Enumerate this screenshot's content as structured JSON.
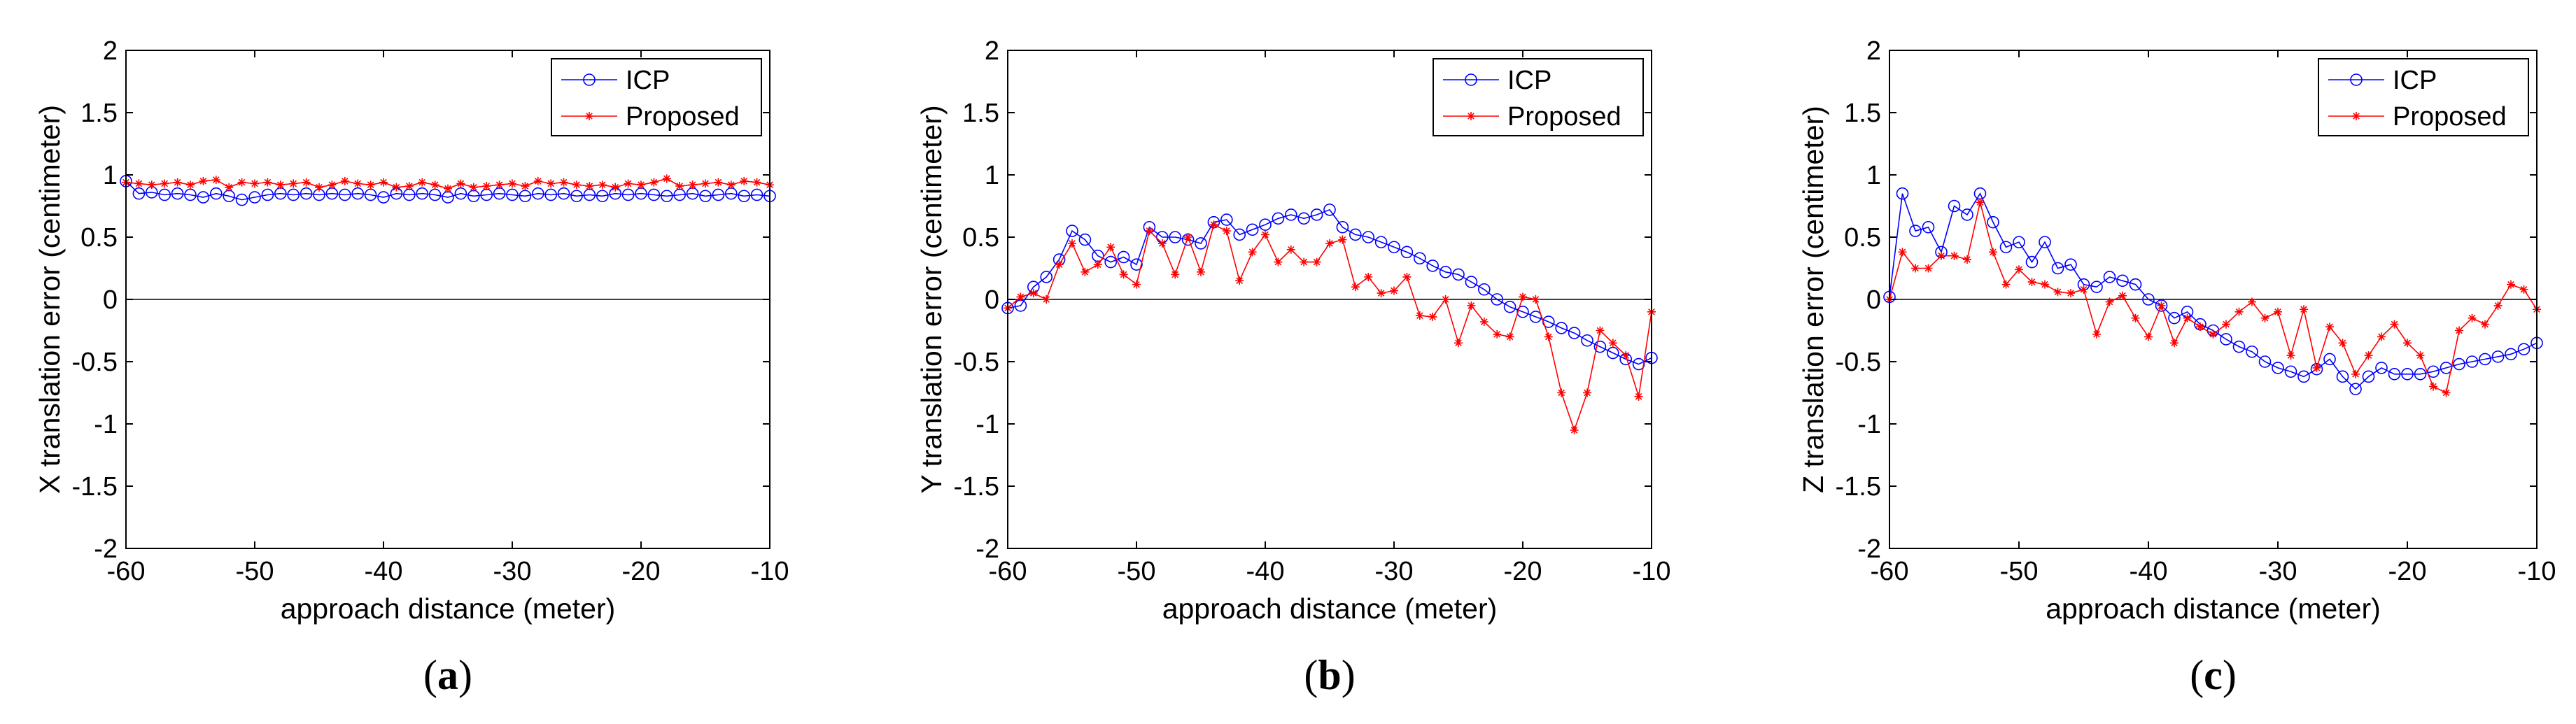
{
  "chart_data": [
    {
      "type": "line",
      "caption": {
        "open": "(",
        "letter": "a",
        "close": ")"
      },
      "xlabel": "approach distance (meter)",
      "ylabel": "X translation error (centimeter)",
      "xlim": [
        -60,
        -10
      ],
      "ylim": [
        -2,
        2
      ],
      "xticks": [
        "-60",
        "-50",
        "-40",
        "-30",
        "-20",
        "-10"
      ],
      "yticks": [
        "-2",
        "-1.5",
        "-1",
        "-0.5",
        "0",
        "0.5",
        "1",
        "1.5",
        "2"
      ],
      "legend_position": "top-right",
      "x": [
        -60,
        -59,
        -58,
        -57,
        -56,
        -55,
        -54,
        -53,
        -52,
        -51,
        -50,
        -49,
        -48,
        -47,
        -46,
        -45,
        -44,
        -43,
        -42,
        -41,
        -40,
        -39,
        -38,
        -37,
        -36,
        -35,
        -34,
        -33,
        -32,
        -31,
        -30,
        -29,
        -28,
        -27,
        -26,
        -25,
        -24,
        -23,
        -22,
        -21,
        -20,
        -19,
        -18,
        -17,
        -16,
        -15,
        -14,
        -13,
        -12,
        -11,
        -10
      ],
      "series": [
        {
          "name": "ICP",
          "color": "#0000ff",
          "marker": "circle",
          "values": [
            0.95,
            0.85,
            0.86,
            0.84,
            0.85,
            0.84,
            0.82,
            0.85,
            0.83,
            0.8,
            0.82,
            0.84,
            0.85,
            0.84,
            0.85,
            0.84,
            0.85,
            0.84,
            0.85,
            0.84,
            0.82,
            0.85,
            0.84,
            0.85,
            0.84,
            0.82,
            0.85,
            0.83,
            0.84,
            0.85,
            0.84,
            0.83,
            0.85,
            0.84,
            0.85,
            0.83,
            0.84,
            0.83,
            0.85,
            0.84,
            0.85,
            0.84,
            0.83,
            0.84,
            0.85,
            0.83,
            0.84,
            0.85,
            0.83,
            0.84,
            0.83
          ]
        },
        {
          "name": "Proposed",
          "color": "#ff0000",
          "marker": "star",
          "values": [
            0.94,
            0.93,
            0.92,
            0.93,
            0.94,
            0.92,
            0.95,
            0.96,
            0.9,
            0.94,
            0.93,
            0.94,
            0.92,
            0.93,
            0.94,
            0.9,
            0.92,
            0.95,
            0.93,
            0.92,
            0.94,
            0.9,
            0.91,
            0.94,
            0.92,
            0.89,
            0.93,
            0.9,
            0.91,
            0.92,
            0.93,
            0.91,
            0.95,
            0.93,
            0.94,
            0.92,
            0.91,
            0.92,
            0.9,
            0.93,
            0.92,
            0.94,
            0.97,
            0.91,
            0.92,
            0.93,
            0.94,
            0.92,
            0.95,
            0.94,
            0.92
          ]
        }
      ]
    },
    {
      "type": "line",
      "caption": {
        "open": "(",
        "letter": "b",
        "close": ")"
      },
      "xlabel": "approach distance (meter)",
      "ylabel": "Y translation error (centimeter)",
      "xlim": [
        -60,
        -10
      ],
      "ylim": [
        -2,
        2
      ],
      "xticks": [
        "-60",
        "-50",
        "-40",
        "-30",
        "-20",
        "-10"
      ],
      "yticks": [
        "-2",
        "-1.5",
        "-1",
        "-0.5",
        "0",
        "0.5",
        "1",
        "1.5",
        "2"
      ],
      "legend_position": "top-right",
      "x": [
        -60,
        -59,
        -58,
        -57,
        -56,
        -55,
        -54,
        -53,
        -52,
        -51,
        -50,
        -49,
        -48,
        -47,
        -46,
        -45,
        -44,
        -43,
        -42,
        -41,
        -40,
        -39,
        -38,
        -37,
        -36,
        -35,
        -34,
        -33,
        -32,
        -31,
        -30,
        -29,
        -28,
        -27,
        -26,
        -25,
        -24,
        -23,
        -22,
        -21,
        -20,
        -19,
        -18,
        -17,
        -16,
        -15,
        -14,
        -13,
        -12,
        -11,
        -10
      ],
      "series": [
        {
          "name": "ICP",
          "color": "#0000ff",
          "marker": "circle",
          "values": [
            -0.07,
            -0.05,
            0.1,
            0.18,
            0.32,
            0.55,
            0.48,
            0.35,
            0.3,
            0.34,
            0.28,
            0.58,
            0.5,
            0.5,
            0.48,
            0.45,
            0.62,
            0.64,
            0.52,
            0.56,
            0.6,
            0.65,
            0.68,
            0.65,
            0.68,
            0.72,
            0.58,
            0.52,
            0.5,
            0.46,
            0.42,
            0.38,
            0.33,
            0.27,
            0.22,
            0.2,
            0.14,
            0.08,
            0.0,
            -0.06,
            -0.1,
            -0.14,
            -0.18,
            -0.23,
            -0.27,
            -0.33,
            -0.38,
            -0.43,
            -0.48,
            -0.52,
            -0.47
          ]
        },
        {
          "name": "Proposed",
          "color": "#ff0000",
          "marker": "star",
          "values": [
            -0.07,
            0.02,
            0.05,
            0.0,
            0.28,
            0.45,
            0.22,
            0.28,
            0.42,
            0.2,
            0.12,
            0.55,
            0.45,
            0.2,
            0.5,
            0.22,
            0.6,
            0.55,
            0.15,
            0.38,
            0.52,
            0.3,
            0.4,
            0.3,
            0.3,
            0.45,
            0.48,
            0.1,
            0.18,
            0.05,
            0.07,
            0.18,
            -0.13,
            -0.14,
            0.0,
            -0.35,
            -0.05,
            -0.18,
            -0.28,
            -0.3,
            0.02,
            0.0,
            -0.3,
            -0.75,
            -1.05,
            -0.75,
            -0.25,
            -0.35,
            -0.45,
            -0.78,
            -0.1
          ]
        }
      ]
    },
    {
      "type": "line",
      "caption": {
        "open": "(",
        "letter": "c",
        "close": ")"
      },
      "xlabel": "approach distance (meter)",
      "ylabel": "Z translation error (centimeter)",
      "xlim": [
        -60,
        -10
      ],
      "ylim": [
        -2,
        2
      ],
      "xticks": [
        "-60",
        "-50",
        "-40",
        "-30",
        "-20",
        "-10"
      ],
      "yticks": [
        "-2",
        "-1.5",
        "-1",
        "-0.5",
        "0",
        "0.5",
        "1",
        "1.5",
        "2"
      ],
      "legend_position": "top-right",
      "x": [
        -60,
        -59,
        -58,
        -57,
        -56,
        -55,
        -54,
        -53,
        -52,
        -51,
        -50,
        -49,
        -48,
        -47,
        -46,
        -45,
        -44,
        -43,
        -42,
        -41,
        -40,
        -39,
        -38,
        -37,
        -36,
        -35,
        -34,
        -33,
        -32,
        -31,
        -30,
        -29,
        -28,
        -27,
        -26,
        -25,
        -24,
        -23,
        -22,
        -21,
        -20,
        -19,
        -18,
        -17,
        -16,
        -15,
        -14,
        -13,
        -12,
        -11,
        -10
      ],
      "series": [
        {
          "name": "ICP",
          "color": "#0000ff",
          "marker": "circle",
          "values": [
            0.02,
            0.85,
            0.55,
            0.58,
            0.38,
            0.75,
            0.68,
            0.85,
            0.62,
            0.42,
            0.46,
            0.3,
            0.46,
            0.25,
            0.28,
            0.12,
            0.1,
            0.18,
            0.15,
            0.12,
            0.0,
            -0.05,
            -0.15,
            -0.1,
            -0.2,
            -0.25,
            -0.32,
            -0.38,
            -0.42,
            -0.5,
            -0.55,
            -0.58,
            -0.62,
            -0.56,
            -0.48,
            -0.62,
            -0.72,
            -0.62,
            -0.55,
            -0.6,
            -0.6,
            -0.6,
            -0.58,
            -0.55,
            -0.52,
            -0.5,
            -0.48,
            -0.46,
            -0.44,
            -0.4,
            -0.35
          ]
        },
        {
          "name": "Proposed",
          "color": "#ff0000",
          "marker": "star",
          "values": [
            0.0,
            0.38,
            0.25,
            0.25,
            0.35,
            0.35,
            0.32,
            0.78,
            0.38,
            0.12,
            0.24,
            0.14,
            0.12,
            0.06,
            0.05,
            0.08,
            -0.28,
            -0.02,
            0.03,
            -0.15,
            -0.3,
            -0.05,
            -0.35,
            -0.15,
            -0.22,
            -0.28,
            -0.2,
            -0.1,
            -0.02,
            -0.15,
            -0.1,
            -0.45,
            -0.08,
            -0.55,
            -0.22,
            -0.35,
            -0.6,
            -0.45,
            -0.3,
            -0.2,
            -0.35,
            -0.45,
            -0.7,
            -0.75,
            -0.25,
            -0.15,
            -0.2,
            -0.05,
            0.12,
            0.08,
            -0.08
          ]
        }
      ]
    }
  ]
}
